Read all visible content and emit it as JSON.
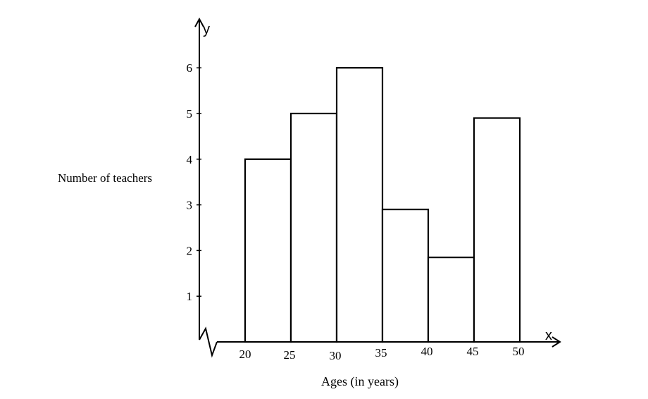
{
  "chart_data": {
    "type": "bar",
    "bins": [
      {
        "from": 20,
        "to": 25,
        "value": 4
      },
      {
        "from": 25,
        "to": 30,
        "value": 5
      },
      {
        "from": 30,
        "to": 35,
        "value": 6
      },
      {
        "from": 35,
        "to": 40,
        "value": 2.9
      },
      {
        "from": 40,
        "to": 45,
        "value": 1.85
      },
      {
        "from": 45,
        "to": 50,
        "value": 4.9
      }
    ],
    "x_ticks": [
      "20",
      "25",
      "30",
      "35",
      "40",
      "45",
      "50"
    ],
    "y_ticks": [
      "1",
      "2",
      "3",
      "4",
      "5",
      "6"
    ],
    "xlabel": "Ages (in years)",
    "ylabel": "Number of teachers",
    "x_axis_symbol": "x",
    "y_axis_symbol": "y",
    "xlim": [
      20,
      50
    ],
    "ylim": [
      0,
      6
    ],
    "grid": false,
    "axis_break": "zigzag on x-axis near origin"
  }
}
